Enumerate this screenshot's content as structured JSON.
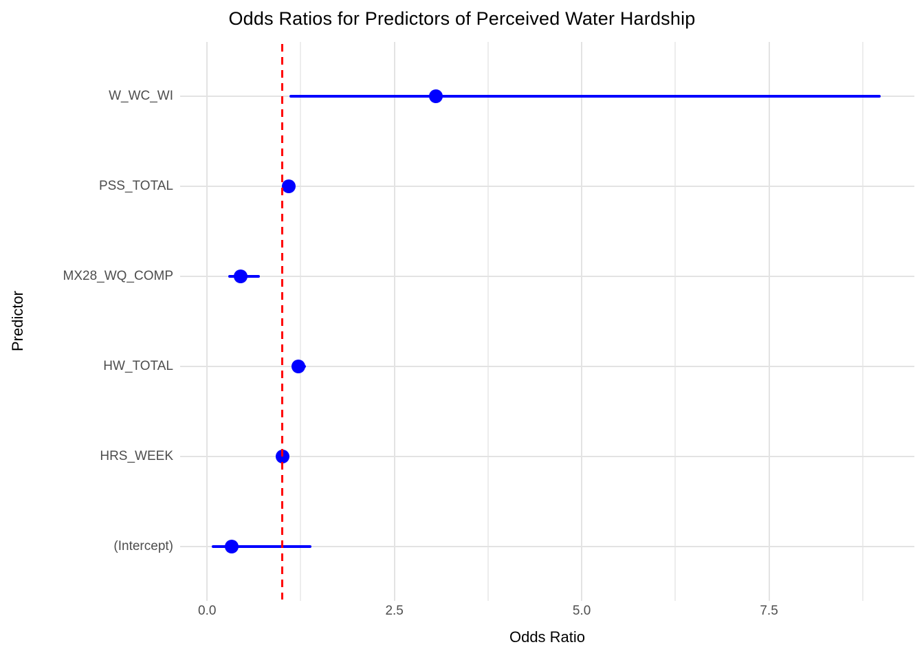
{
  "chart_data": {
    "type": "scatter",
    "subtype": "forest-plot-odds-ratios",
    "title": "Odds Ratios for Predictors of Perceived Water Hardship",
    "xlabel": "Odds Ratio",
    "ylabel": "Predictor",
    "categories": [
      "W_WC_WI",
      "PSS_TOTAL",
      "MX28_WQ_COMP",
      "HW_TOTAL",
      "HRS_WEEK",
      "(Intercept)"
    ],
    "odds_ratios": [
      3.05,
      1.09,
      0.45,
      1.22,
      1.01,
      0.33
    ],
    "ci_low": [
      1.1,
      1.03,
      0.28,
      1.13,
      0.97,
      0.06
    ],
    "ci_high": [
      8.99,
      1.15,
      0.7,
      1.32,
      1.05,
      1.39
    ],
    "reference_line_x": 1.0,
    "x_ticks": [
      0.0,
      2.5,
      5.0,
      7.5
    ],
    "x_tick_labels": [
      "0.0",
      "2.5",
      "5.0",
      "7.5"
    ],
    "x_minor_gridlines": [
      1.25,
      3.75,
      6.25,
      8.75
    ],
    "xlim": [
      -0.36,
      9.44
    ],
    "grid": true,
    "legend": false,
    "colors": {
      "point": "#0000ff",
      "ci_line": "#0000ff",
      "reference_line": "#ff0000",
      "gridline_major": "#e3e3e3",
      "gridline_minor": "#ededed",
      "axis_text": "#4d4d4d",
      "title_text": "#000000"
    }
  }
}
